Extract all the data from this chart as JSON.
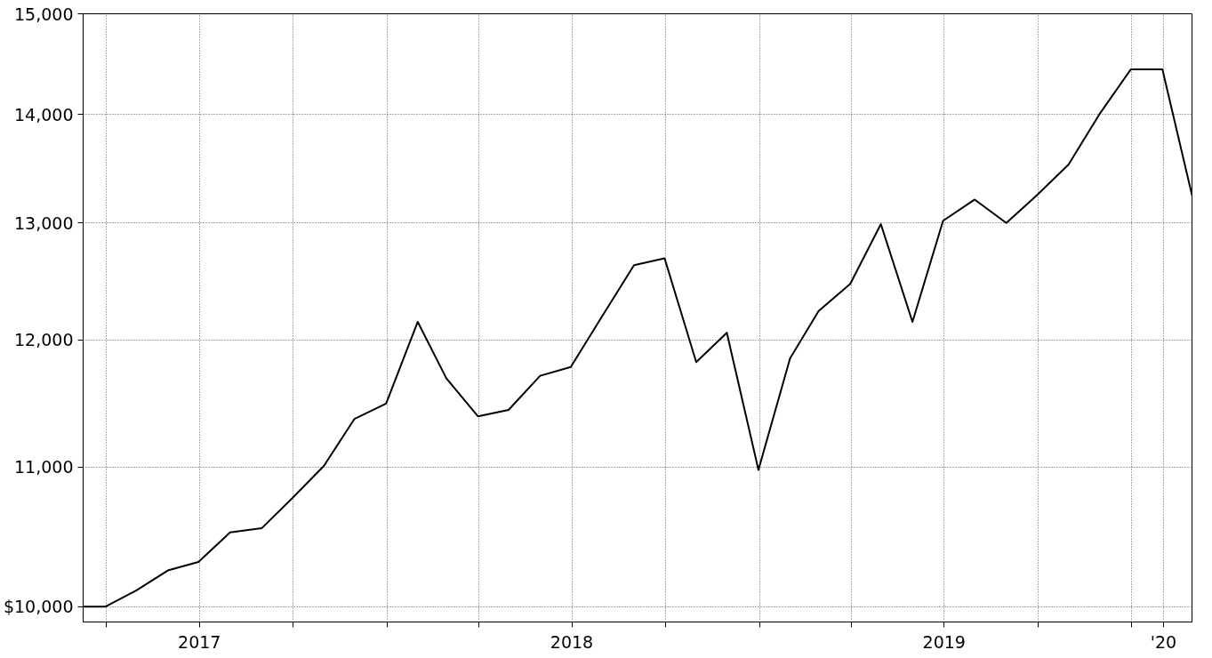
{
  "chart_data": {
    "type": "line",
    "log": "y",
    "grid": true,
    "marker": "none",
    "line_style": "solid",
    "x": [
      "2017-03-09",
      "2017-03-31",
      "2017-04-30",
      "2017-05-31",
      "2017-06-30",
      "2017-07-31",
      "2017-08-31",
      "2017-09-30",
      "2017-10-31",
      "2017-11-30",
      "2017-12-31",
      "2018-01-31",
      "2018-02-28",
      "2018-03-31",
      "2018-04-30",
      "2018-05-31",
      "2018-06-30",
      "2018-07-31",
      "2018-08-31",
      "2018-09-30",
      "2018-10-31",
      "2018-11-30",
      "2018-12-31",
      "2019-01-31",
      "2019-02-28",
      "2019-03-31",
      "2019-04-30",
      "2019-05-31",
      "2019-06-30",
      "2019-07-31",
      "2019-08-31",
      "2019-09-30",
      "2019-10-31",
      "2019-11-30",
      "2019-12-31",
      "2020-01-31",
      "2020-02-29"
    ],
    "series": [
      {
        "color": "#000000",
        "values": [
          10000,
          10000,
          10110,
          10250,
          10310,
          10520,
          10550,
          10770,
          11010,
          11370,
          11490,
          12150,
          11690,
          11390,
          11440,
          11710,
          11780,
          12200,
          12630,
          12690,
          11820,
          12060,
          10980,
          11850,
          12240,
          12470,
          12990,
          12150,
          13020,
          13210,
          13000,
          13250,
          13530,
          14000,
          14440,
          14440,
          13250
        ]
      }
    ],
    "xlim": [
      "2017-03-09",
      "2020-02-29"
    ],
    "xticks": [
      {
        "value": "2017-04-01",
        "label": null
      },
      {
        "value": "2017-07-01",
        "label": "2017"
      },
      {
        "value": "2017-10-01",
        "label": null
      },
      {
        "value": "2018-01-01",
        "label": null
      },
      {
        "value": "2018-04-01",
        "label": null
      },
      {
        "value": "2018-07-01",
        "label": "2018"
      },
      {
        "value": "2018-10-01",
        "label": null
      },
      {
        "value": "2019-01-01",
        "label": null
      },
      {
        "value": "2019-04-01",
        "label": null
      },
      {
        "value": "2019-07-01",
        "label": "2019"
      },
      {
        "value": "2019-10-01",
        "label": null
      },
      {
        "value": "2020-01-01",
        "label": null
      },
      {
        "value": "2020-02-01",
        "label": "'20"
      }
    ],
    "ylim": [
      9895,
      15000
    ],
    "yticks": [
      {
        "value": 10000,
        "label": "$10,000"
      },
      {
        "value": 11000,
        "label": "11,000"
      },
      {
        "value": 12000,
        "label": "12,000"
      },
      {
        "value": 13000,
        "label": "13,000"
      },
      {
        "value": 14000,
        "label": "14,000"
      },
      {
        "value": 15000,
        "label": "15,000"
      }
    ]
  }
}
